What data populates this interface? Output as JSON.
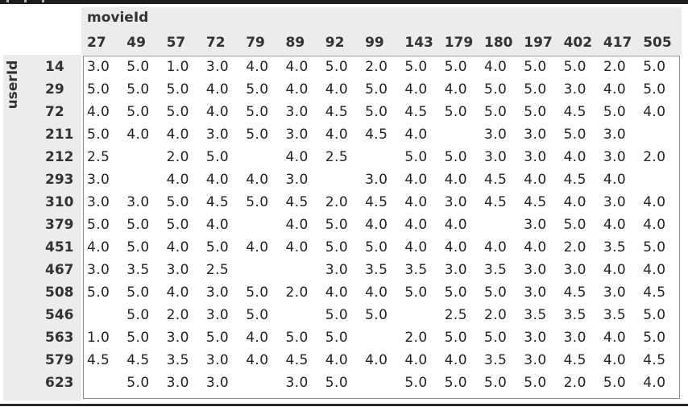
{
  "table": {
    "column_axis_title": "movieId",
    "row_axis_title": "userId",
    "columns": [
      "27",
      "49",
      "57",
      "72",
      "79",
      "89",
      "92",
      "99",
      "143",
      "179",
      "180",
      "197",
      "402",
      "417",
      "505"
    ],
    "rows": [
      {
        "id": "14",
        "values": [
          "3.0",
          "5.0",
          "1.0",
          "3.0",
          "4.0",
          "4.0",
          "5.0",
          "2.0",
          "5.0",
          "5.0",
          "4.0",
          "5.0",
          "5.0",
          "2.0",
          "5.0"
        ]
      },
      {
        "id": "29",
        "values": [
          "5.0",
          "5.0",
          "5.0",
          "4.0",
          "5.0",
          "4.0",
          "4.0",
          "5.0",
          "4.0",
          "4.0",
          "5.0",
          "5.0",
          "3.0",
          "4.0",
          "5.0"
        ]
      },
      {
        "id": "72",
        "values": [
          "4.0",
          "5.0",
          "5.0",
          "4.0",
          "5.0",
          "3.0",
          "4.5",
          "5.0",
          "4.5",
          "5.0",
          "5.0",
          "5.0",
          "4.5",
          "5.0",
          "4.0"
        ]
      },
      {
        "id": "211",
        "values": [
          "5.0",
          "4.0",
          "4.0",
          "3.0",
          "5.0",
          "3.0",
          "4.0",
          "4.5",
          "4.0",
          "",
          "3.0",
          "3.0",
          "5.0",
          "3.0",
          ""
        ]
      },
      {
        "id": "212",
        "values": [
          "2.5",
          "",
          "2.0",
          "5.0",
          "",
          "4.0",
          "2.5",
          "",
          "5.0",
          "5.0",
          "3.0",
          "3.0",
          "4.0",
          "3.0",
          "2.0"
        ]
      },
      {
        "id": "293",
        "values": [
          "3.0",
          "",
          "4.0",
          "4.0",
          "4.0",
          "3.0",
          "",
          "3.0",
          "4.0",
          "4.0",
          "4.5",
          "4.0",
          "4.5",
          "4.0",
          ""
        ]
      },
      {
        "id": "310",
        "values": [
          "3.0",
          "3.0",
          "5.0",
          "4.5",
          "5.0",
          "4.5",
          "2.0",
          "4.5",
          "4.0",
          "3.0",
          "4.5",
          "4.5",
          "4.0",
          "3.0",
          "4.0"
        ]
      },
      {
        "id": "379",
        "values": [
          "5.0",
          "5.0",
          "5.0",
          "4.0",
          "",
          "4.0",
          "5.0",
          "4.0",
          "4.0",
          "4.0",
          "",
          "3.0",
          "5.0",
          "4.0",
          "4.0"
        ]
      },
      {
        "id": "451",
        "values": [
          "4.0",
          "5.0",
          "4.0",
          "5.0",
          "4.0",
          "4.0",
          "5.0",
          "5.0",
          "4.0",
          "4.0",
          "4.0",
          "4.0",
          "2.0",
          "3.5",
          "5.0"
        ]
      },
      {
        "id": "467",
        "values": [
          "3.0",
          "3.5",
          "3.0",
          "2.5",
          "",
          "",
          "3.0",
          "3.5",
          "3.5",
          "3.0",
          "3.5",
          "3.0",
          "3.0",
          "4.0",
          "4.0"
        ]
      },
      {
        "id": "508",
        "values": [
          "5.0",
          "5.0",
          "4.0",
          "3.0",
          "5.0",
          "2.0",
          "4.0",
          "4.0",
          "5.0",
          "5.0",
          "5.0",
          "3.0",
          "4.5",
          "3.0",
          "4.5"
        ]
      },
      {
        "id": "546",
        "values": [
          "",
          "5.0",
          "2.0",
          "3.0",
          "5.0",
          "",
          "5.0",
          "5.0",
          "",
          "2.5",
          "2.0",
          "3.5",
          "3.5",
          "3.5",
          "5.0"
        ]
      },
      {
        "id": "563",
        "values": [
          "1.0",
          "5.0",
          "3.0",
          "5.0",
          "4.0",
          "5.0",
          "5.0",
          "",
          "2.0",
          "5.0",
          "5.0",
          "3.0",
          "3.0",
          "4.0",
          "5.0"
        ]
      },
      {
        "id": "579",
        "values": [
          "4.5",
          "4.5",
          "3.5",
          "3.0",
          "4.0",
          "4.5",
          "4.0",
          "4.0",
          "4.0",
          "4.0",
          "3.5",
          "3.0",
          "4.5",
          "4.0",
          "4.5"
        ]
      },
      {
        "id": "623",
        "values": [
          "",
          "5.0",
          "3.0",
          "3.0",
          "",
          "3.0",
          "5.0",
          "",
          "5.0",
          "5.0",
          "5.0",
          "5.0",
          "2.0",
          "5.0",
          "4.0"
        ]
      }
    ]
  }
}
